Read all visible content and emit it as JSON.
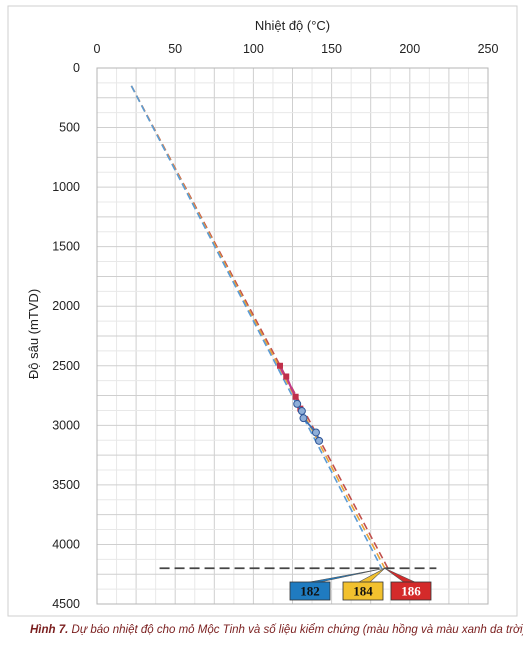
{
  "caption": {
    "label": "Hình 7.",
    "text": "Dự báo nhiệt độ cho mỏ Mộc Tinh và số liệu kiểm chứng (màu hồng và màu xanh da trời)"
  },
  "chart_data": {
    "type": "line",
    "xlabel": "Nhiệt độ (°C)",
    "ylabel": "Độ sâu (mTVD)",
    "xlim": [
      0,
      250
    ],
    "ylim": [
      4500,
      0
    ],
    "x_axis_position": "top",
    "y_inverted": true,
    "grid": true,
    "x_ticks": [
      "0",
      "50",
      "100",
      "150",
      "200",
      "250"
    ],
    "y_ticks": [
      "0",
      "500",
      "1000",
      "1500",
      "2000",
      "2500",
      "3000",
      "3500",
      "4000",
      "4500"
    ],
    "series": [
      {
        "color": "#c0504d",
        "style": "dashed",
        "points": [
          [
            22,
            150
          ],
          [
            186,
            4200
          ]
        ]
      },
      {
        "color": "#e8a33a",
        "style": "dashed",
        "points": [
          [
            22,
            150
          ],
          [
            184,
            4200
          ]
        ]
      },
      {
        "color": "#5b9bd5",
        "style": "dashed",
        "points": [
          [
            22,
            150
          ],
          [
            182,
            4200
          ]
        ]
      }
    ],
    "measured_pink": [
      [
        117,
        2500
      ],
      [
        119,
        2560
      ],
      [
        121,
        2590
      ],
      [
        124,
        2680
      ],
      [
        127,
        2760
      ],
      [
        129,
        2820
      ],
      [
        130,
        2860
      ],
      [
        131,
        2900
      ]
    ],
    "measured_blue": [
      [
        128,
        2820
      ],
      [
        131,
        2880
      ],
      [
        132,
        2940
      ],
      [
        140,
        3060
      ],
      [
        142,
        3130
      ]
    ],
    "reference_line": {
      "depth": 4200,
      "x_from": 40,
      "x_to": 217,
      "color": "#444444"
    },
    "annotations": [
      {
        "text": "182",
        "color": "#1f7bc0",
        "text_color": "#111111"
      },
      {
        "text": "184",
        "color": "#f2c12e",
        "text_color": "#111111"
      },
      {
        "text": "186",
        "color": "#d42a2a",
        "text_color": "#ffffff"
      }
    ]
  }
}
